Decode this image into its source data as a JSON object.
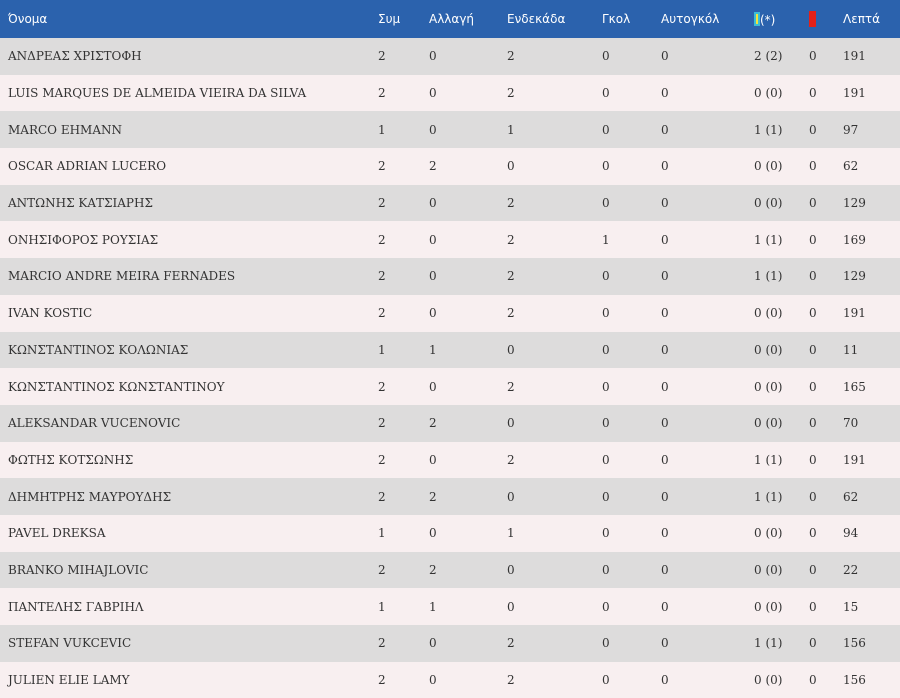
{
  "colors": {
    "header_bg": "#2b62ad",
    "row_odd_bg": "#dddcdc",
    "row_even_bg": "#f8eff0",
    "yellow_card": "#f3e33b",
    "red_card": "#e32119"
  },
  "header": {
    "name": "Όνομα",
    "apps": "Συμ",
    "subs": "Αλλαγή",
    "lineups": "Ενδεκάδα",
    "goals": "Γκολ",
    "own_goals": "Αυτογκόλ",
    "yellow_icon": "yellow-card-icon",
    "yellow_suffix": "(*)",
    "red_icon": "red-card-icon",
    "minutes": "Λεπτά"
  },
  "rows": [
    {
      "name": "ΑΝΔΡΕΑΣ ΧΡΙΣΤΟΦΗ",
      "apps": "2",
      "subs": "0",
      "lineups": "2",
      "goals": "0",
      "own_goals": "0",
      "yellow": "2 (2)",
      "red": "0",
      "minutes": "191"
    },
    {
      "name": "LUIS MARQUES DE ALMEIDA VIEIRA DA SILVA",
      "apps": "2",
      "subs": "0",
      "lineups": "2",
      "goals": "0",
      "own_goals": "0",
      "yellow": "0 (0)",
      "red": "0",
      "minutes": "191"
    },
    {
      "name": "MARCO EHMANN",
      "apps": "1",
      "subs": "0",
      "lineups": "1",
      "goals": "0",
      "own_goals": "0",
      "yellow": "1 (1)",
      "red": "0",
      "minutes": "97"
    },
    {
      "name": "OSCAR ADRIAN LUCERO",
      "apps": "2",
      "subs": "2",
      "lineups": "0",
      "goals": "0",
      "own_goals": "0",
      "yellow": "0 (0)",
      "red": "0",
      "minutes": "62"
    },
    {
      "name": "ΑΝΤΩΝΗΣ ΚΑΤΣΙΑΡΗΣ",
      "apps": "2",
      "subs": "0",
      "lineups": "2",
      "goals": "0",
      "own_goals": "0",
      "yellow": "0 (0)",
      "red": "0",
      "minutes": "129"
    },
    {
      "name": "ΟΝΗΣΙΦΟΡΟΣ ΡΟΥΣΙΑΣ",
      "apps": "2",
      "subs": "0",
      "lineups": "2",
      "goals": "1",
      "own_goals": "0",
      "yellow": "1 (1)",
      "red": "0",
      "minutes": "169"
    },
    {
      "name": "MARCIO ANDRE MEIRA FERNADES",
      "apps": "2",
      "subs": "0",
      "lineups": "2",
      "goals": "0",
      "own_goals": "0",
      "yellow": "1 (1)",
      "red": "0",
      "minutes": "129"
    },
    {
      "name": "IVAN KOSTIC",
      "apps": "2",
      "subs": "0",
      "lineups": "2",
      "goals": "0",
      "own_goals": "0",
      "yellow": "0 (0)",
      "red": "0",
      "minutes": "191"
    },
    {
      "name": "ΚΩΝΣΤΑΝΤΙΝΟΣ ΚΟΛΩΝΙΑΣ",
      "apps": "1",
      "subs": "1",
      "lineups": "0",
      "goals": "0",
      "own_goals": "0",
      "yellow": "0 (0)",
      "red": "0",
      "minutes": "11"
    },
    {
      "name": "ΚΩΝΣΤΑΝΤΙΝΟΣ ΚΩΝΣΤΑΝΤΙΝΟΥ",
      "apps": "2",
      "subs": "0",
      "lineups": "2",
      "goals": "0",
      "own_goals": "0",
      "yellow": "0 (0)",
      "red": "0",
      "minutes": "165"
    },
    {
      "name": "ALEKSANDAR VUCENOVIC",
      "apps": "2",
      "subs": "2",
      "lineups": "0",
      "goals": "0",
      "own_goals": "0",
      "yellow": "0 (0)",
      "red": "0",
      "minutes": "70"
    },
    {
      "name": "ΦΩΤΗΣ ΚΟΤΣΩΝΗΣ",
      "apps": "2",
      "subs": "0",
      "lineups": "2",
      "goals": "0",
      "own_goals": "0",
      "yellow": "1 (1)",
      "red": "0",
      "minutes": "191"
    },
    {
      "name": "ΔΗΜΗΤΡΗΣ ΜΑΥΡΟΥΔΗΣ",
      "apps": "2",
      "subs": "2",
      "lineups": "0",
      "goals": "0",
      "own_goals": "0",
      "yellow": "1 (1)",
      "red": "0",
      "minutes": "62"
    },
    {
      "name": "PAVEL DREKSA",
      "apps": "1",
      "subs": "0",
      "lineups": "1",
      "goals": "0",
      "own_goals": "0",
      "yellow": "0 (0)",
      "red": "0",
      "minutes": "94"
    },
    {
      "name": "BRANKO MIHAJLOVIC",
      "apps": "2",
      "subs": "2",
      "lineups": "0",
      "goals": "0",
      "own_goals": "0",
      "yellow": "0 (0)",
      "red": "0",
      "minutes": "22"
    },
    {
      "name": "ΠΑΝΤΕΛΗΣ ΓΑΒΡΙΗΛ",
      "apps": "1",
      "subs": "1",
      "lineups": "0",
      "goals": "0",
      "own_goals": "0",
      "yellow": "0 (0)",
      "red": "0",
      "minutes": "15"
    },
    {
      "name": "STEFAN VUKCEVIC",
      "apps": "2",
      "subs": "0",
      "lineups": "2",
      "goals": "0",
      "own_goals": "0",
      "yellow": "1 (1)",
      "red": "0",
      "minutes": "156"
    },
    {
      "name": "JULIEN ELIE LAMY",
      "apps": "2",
      "subs": "0",
      "lineups": "2",
      "goals": "0",
      "own_goals": "0",
      "yellow": "0 (0)",
      "red": "0",
      "minutes": "156"
    }
  ]
}
